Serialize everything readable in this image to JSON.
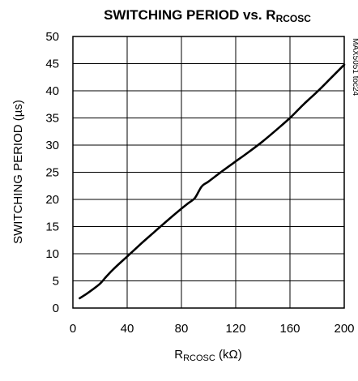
{
  "chart_data": {
    "type": "line",
    "title": {
      "main": "SWITCHING PERIOD vs. R",
      "subscript": "RCOSC"
    },
    "xlabel": {
      "main": "R",
      "subscript": "RCOSC",
      "unit": " (kΩ)"
    },
    "ylabel": "SWITCHING PERIOD (µs)",
    "side_note": "MAX5051 toc24",
    "xlim": [
      0,
      200
    ],
    "ylim": [
      0,
      50
    ],
    "x_ticks": [
      0,
      40,
      80,
      120,
      160,
      200
    ],
    "y_ticks": [
      0,
      5,
      10,
      15,
      20,
      25,
      30,
      35,
      40,
      45,
      50
    ],
    "x_tick_labels": [
      "0",
      "40",
      "80",
      "120",
      "160",
      "200"
    ],
    "y_tick_labels": [
      "0",
      "5",
      "10",
      "15",
      "20",
      "25",
      "30",
      "35",
      "40",
      "45",
      "50"
    ],
    "grid": true,
    "series": [
      {
        "x": [
          5,
          10,
          15,
          20,
          25,
          30,
          40,
          50,
          60,
          70,
          80,
          85,
          90,
          95,
          100,
          110,
          120,
          130,
          140,
          150,
          160,
          170,
          180,
          190,
          200
        ],
        "y": [
          1.8,
          2.6,
          3.5,
          4.5,
          5.9,
          7.2,
          9.5,
          11.8,
          14.0,
          16.2,
          18.3,
          19.3,
          20.3,
          22.4,
          23.3,
          25.2,
          27.0,
          28.8,
          30.7,
          32.8,
          35.0,
          37.5,
          39.8,
          42.3,
          44.8
        ]
      }
    ]
  }
}
